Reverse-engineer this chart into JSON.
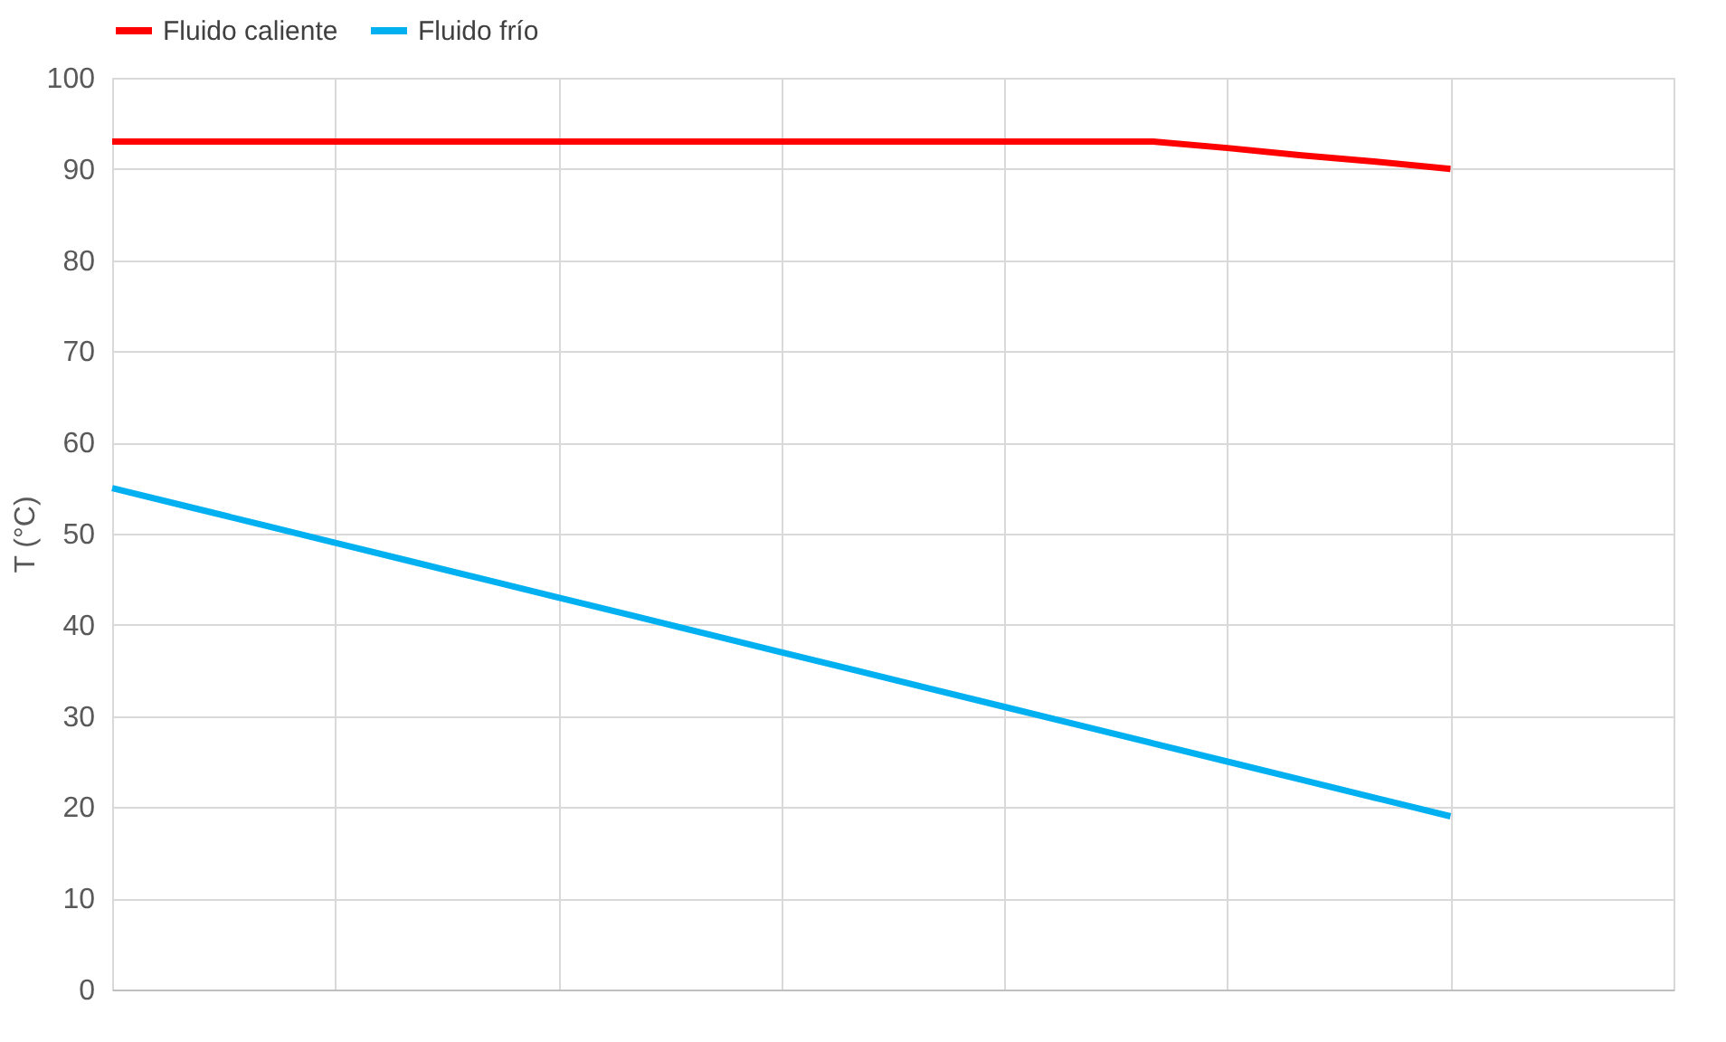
{
  "chart_data": {
    "type": "line",
    "ylabel": "T (°C)",
    "categories": [
      null,
      null,
      null,
      null,
      null,
      null,
      null,
      null,
      null,
      null,
      null,
      null,
      null,
      null,
      null,
      null,
      null,
      null,
      null,
      null,
      null,
      null
    ],
    "series": [
      {
        "name": "Fluido caliente",
        "color": "#ff0000",
        "values": [
          93,
          93,
          93,
          93,
          93,
          93,
          93,
          93,
          93,
          93,
          93,
          93,
          93,
          93,
          93,
          92.3,
          91.5,
          90.8,
          90,
          null,
          null,
          null
        ]
      },
      {
        "name": "Fluido frío",
        "color": "#00b0f0",
        "values": [
          55,
          53,
          51,
          49,
          47,
          45,
          43,
          41,
          39,
          37,
          35,
          33,
          31,
          29,
          27,
          25,
          23,
          21,
          19,
          null,
          null,
          null
        ]
      }
    ],
    "ylim": [
      0,
      100
    ],
    "yticks": [
      0,
      10,
      20,
      30,
      40,
      50,
      60,
      70,
      80,
      90,
      100
    ],
    "tick_labels": "y",
    "grid": true,
    "legend": "top",
    "line_style": "solid"
  }
}
